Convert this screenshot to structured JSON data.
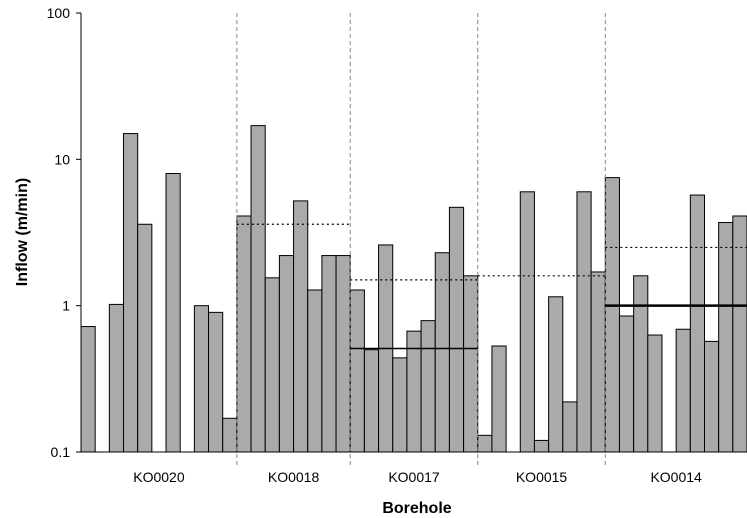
{
  "chart_data": {
    "type": "bar",
    "xlabel": "Borehole",
    "ylabel": "Inflow (m/min)",
    "yscale": "log",
    "ylim": [
      0.1,
      100
    ],
    "yticks": [
      {
        "value": 0.1,
        "label": "0.1"
      },
      {
        "value": 1,
        "label": "1"
      },
      {
        "value": 10,
        "label": "10"
      },
      {
        "value": 100,
        "label": "100"
      }
    ],
    "colors": {
      "bar_fill": "#aaaaaa",
      "bar_stroke": "#000000",
      "separator": "#888888"
    },
    "groups": [
      {
        "name": "KO0020",
        "values": [
          0.72,
          null,
          1.02,
          15.0,
          3.6,
          null,
          8.0,
          null,
          1.0,
          0.9,
          0.17
        ]
      },
      {
        "name": "KO0018",
        "values": [
          4.1,
          17.0,
          1.55,
          2.2,
          5.2,
          1.28,
          2.2,
          2.2
        ],
        "dotted_line": 3.6
      },
      {
        "name": "KO0017",
        "values": [
          1.28,
          0.5,
          2.6,
          0.44,
          0.67,
          0.79,
          2.3,
          4.7,
          1.6
        ],
        "dotted_line": 1.5,
        "solid_line": 0.51
      },
      {
        "name": "KO0015",
        "values": [
          0.13,
          0.53,
          null,
          6.0,
          0.12,
          1.15,
          0.22,
          6.0,
          1.7
        ],
        "dotted_line": 1.6
      },
      {
        "name": "KO0014",
        "values": [
          7.5,
          0.85,
          1.6,
          0.63,
          null,
          0.69,
          5.7,
          0.57,
          3.7,
          4.1
        ],
        "dotted_line": 2.5,
        "solid_line": 1.0
      }
    ]
  }
}
